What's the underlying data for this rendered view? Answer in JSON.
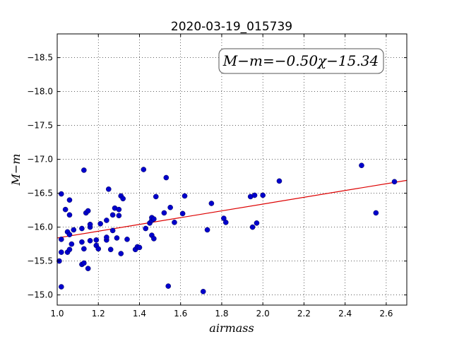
{
  "chart_data": {
    "type": "scatter",
    "title": "2020-03-19_015739",
    "xlabel": "airmass",
    "ylabel": "M−m",
    "annotation": "M−m=−0.50χ−15.34",
    "xlim": [
      1.0,
      2.7
    ],
    "ylim": [
      -18.85,
      -14.85
    ],
    "y_inverted": true,
    "grid": true,
    "xticks": [
      1.0,
      1.2,
      1.4,
      1.6,
      1.8,
      2.0,
      2.2,
      2.4,
      2.6
    ],
    "xtick_labels": [
      "1.0",
      "1.2",
      "1.4",
      "1.6",
      "1.8",
      "2.0",
      "2.2",
      "2.4",
      "2.6"
    ],
    "yticks": [
      -15.0,
      -15.5,
      -16.0,
      -16.5,
      -17.0,
      -17.5,
      -18.0,
      -18.5
    ],
    "ytick_labels": [
      "−15.0",
      "−15.5",
      "−16.0",
      "−16.5",
      "−17.0",
      "−17.5",
      "−18.0",
      "−18.5"
    ],
    "point_color": "#0000cc",
    "fit_color": "#dd0000",
    "fit": {
      "slope": -0.5,
      "intercept": -15.34
    },
    "points": [
      {
        "x": 1.01,
        "y": -15.5
      },
      {
        "x": 1.02,
        "y": -15.12
      },
      {
        "x": 1.02,
        "y": -15.63
      },
      {
        "x": 1.02,
        "y": -15.82
      },
      {
        "x": 1.02,
        "y": -16.49
      },
      {
        "x": 1.04,
        "y": -16.26
      },
      {
        "x": 1.05,
        "y": -15.63
      },
      {
        "x": 1.05,
        "y": -15.93
      },
      {
        "x": 1.06,
        "y": -15.67
      },
      {
        "x": 1.06,
        "y": -15.89
      },
      {
        "x": 1.06,
        "y": -16.18
      },
      {
        "x": 1.06,
        "y": -16.4
      },
      {
        "x": 1.07,
        "y": -15.75
      },
      {
        "x": 1.08,
        "y": -15.96
      },
      {
        "x": 1.12,
        "y": -15.45
      },
      {
        "x": 1.12,
        "y": -15.78
      },
      {
        "x": 1.12,
        "y": -15.98
      },
      {
        "x": 1.13,
        "y": -15.47
      },
      {
        "x": 1.13,
        "y": -15.68
      },
      {
        "x": 1.13,
        "y": -16.84
      },
      {
        "x": 1.14,
        "y": -16.21
      },
      {
        "x": 1.15,
        "y": -15.39
      },
      {
        "x": 1.15,
        "y": -16.24
      },
      {
        "x": 1.16,
        "y": -15.8
      },
      {
        "x": 1.16,
        "y": -16.0
      },
      {
        "x": 1.16,
        "y": -16.04
      },
      {
        "x": 1.19,
        "y": -15.73
      },
      {
        "x": 1.19,
        "y": -15.81
      },
      {
        "x": 1.2,
        "y": -15.68
      },
      {
        "x": 1.21,
        "y": -16.05
      },
      {
        "x": 1.24,
        "y": -15.81
      },
      {
        "x": 1.24,
        "y": -15.85
      },
      {
        "x": 1.24,
        "y": -16.1
      },
      {
        "x": 1.25,
        "y": -16.56
      },
      {
        "x": 1.26,
        "y": -15.67
      },
      {
        "x": 1.27,
        "y": -15.95
      },
      {
        "x": 1.27,
        "y": -16.18
      },
      {
        "x": 1.28,
        "y": -16.28
      },
      {
        "x": 1.29,
        "y": -15.84
      },
      {
        "x": 1.3,
        "y": -16.17
      },
      {
        "x": 1.3,
        "y": -16.26
      },
      {
        "x": 1.31,
        "y": -15.61
      },
      {
        "x": 1.31,
        "y": -16.46
      },
      {
        "x": 1.32,
        "y": -16.42
      },
      {
        "x": 1.34,
        "y": -15.82
      },
      {
        "x": 1.38,
        "y": -15.67
      },
      {
        "x": 1.39,
        "y": -15.71
      },
      {
        "x": 1.4,
        "y": -15.7
      },
      {
        "x": 1.42,
        "y": -16.85
      },
      {
        "x": 1.43,
        "y": -15.98
      },
      {
        "x": 1.45,
        "y": -16.06
      },
      {
        "x": 1.46,
        "y": -15.88
      },
      {
        "x": 1.46,
        "y": -16.1
      },
      {
        "x": 1.46,
        "y": -16.14
      },
      {
        "x": 1.47,
        "y": -15.83
      },
      {
        "x": 1.47,
        "y": -16.12
      },
      {
        "x": 1.48,
        "y": -16.45
      },
      {
        "x": 1.52,
        "y": -16.21
      },
      {
        "x": 1.53,
        "y": -16.73
      },
      {
        "x": 1.54,
        "y": -15.13
      },
      {
        "x": 1.55,
        "y": -16.29
      },
      {
        "x": 1.57,
        "y": -16.07
      },
      {
        "x": 1.61,
        "y": -16.2
      },
      {
        "x": 1.62,
        "y": -16.46
      },
      {
        "x": 1.71,
        "y": -15.05
      },
      {
        "x": 1.73,
        "y": -15.96
      },
      {
        "x": 1.75,
        "y": -16.35
      },
      {
        "x": 1.81,
        "y": -16.13
      },
      {
        "x": 1.82,
        "y": -16.07
      },
      {
        "x": 1.94,
        "y": -16.45
      },
      {
        "x": 1.95,
        "y": -16.0
      },
      {
        "x": 1.96,
        "y": -16.47
      },
      {
        "x": 1.97,
        "y": -16.06
      },
      {
        "x": 2.0,
        "y": -16.47
      },
      {
        "x": 2.08,
        "y": -16.68
      },
      {
        "x": 2.48,
        "y": -16.91
      },
      {
        "x": 2.55,
        "y": -16.21
      },
      {
        "x": 2.64,
        "y": -16.67
      }
    ]
  }
}
